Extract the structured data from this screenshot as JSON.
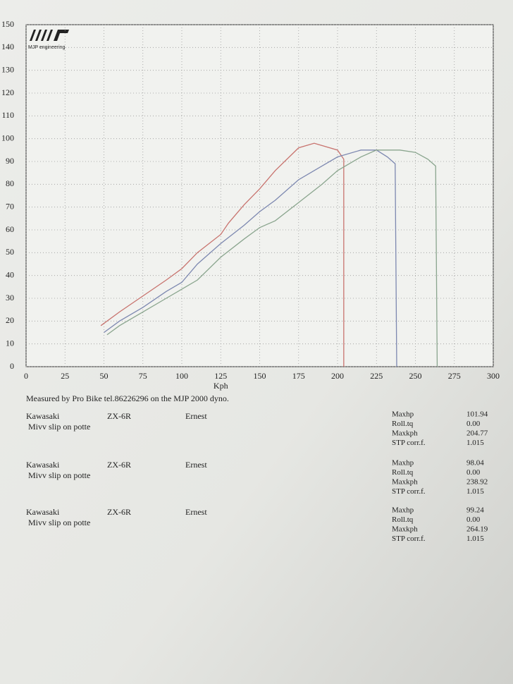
{
  "logo": "MJP engineering",
  "chart_data": {
    "type": "line",
    "x_label": "Kph",
    "xlim": [
      0,
      300
    ],
    "xticks": [
      0,
      25,
      50,
      75,
      100,
      125,
      150,
      175,
      200,
      225,
      250,
      275,
      300
    ],
    "ylim": [
      0,
      150
    ],
    "yticks": [
      0,
      10,
      20,
      30,
      40,
      50,
      60,
      70,
      80,
      90,
      100,
      110,
      120,
      130,
      140,
      150
    ],
    "grid": true,
    "series": [
      {
        "color": "#c8736e",
        "x": [
          48,
          60,
          75,
          90,
          100,
          110,
          125,
          130,
          140,
          150,
          160,
          175,
          185,
          190,
          200,
          204,
          204
        ],
        "values": [
          18,
          24,
          31,
          38,
          43,
          50,
          58,
          63,
          71,
          78,
          86,
          96,
          98,
          97,
          95,
          91,
          0
        ]
      },
      {
        "color": "#7d88b0",
        "x": [
          50,
          60,
          75,
          90,
          100,
          110,
          125,
          140,
          150,
          160,
          175,
          190,
          200,
          215,
          225,
          232,
          237,
          238
        ],
        "values": [
          15,
          20,
          26,
          33,
          37,
          45,
          54,
          62,
          68,
          73,
          82,
          88,
          92,
          95,
          95,
          92,
          89,
          0
        ]
      },
      {
        "color": "#8aa58e",
        "x": [
          52,
          60,
          75,
          90,
          100,
          110,
          125,
          140,
          150,
          160,
          175,
          190,
          200,
          215,
          225,
          240,
          250,
          258,
          263,
          264
        ],
        "values": [
          14,
          18,
          24,
          30,
          34,
          38,
          48,
          56,
          61,
          64,
          72,
          80,
          86,
          92,
          95,
          95,
          94,
          91,
          88,
          0
        ]
      }
    ]
  },
  "footer": "Measured by Pro Bike tel.86226296 on the MJP 2000 dyno.",
  "runs": [
    {
      "make": "Kawasaki",
      "model": "ZX-6R",
      "rider": "Ernest",
      "note": "Mivv slip on potte",
      "stats": [
        [
          "Maxhp",
          "101.94"
        ],
        [
          "Roll.tq",
          "0.00"
        ],
        [
          "Maxkph",
          "204.77"
        ],
        [
          "STP corr.f.",
          "1.015"
        ]
      ]
    },
    {
      "make": "Kawasaki",
      "model": "ZX-6R",
      "rider": "Ernest",
      "note": "Mivv slip on potte",
      "stats": [
        [
          "Maxhp",
          "98.04"
        ],
        [
          "Roll.tq",
          "0.00"
        ],
        [
          "Maxkph",
          "238.92"
        ],
        [
          "STP corr.f.",
          "1.015"
        ]
      ]
    },
    {
      "make": "Kawasaki",
      "model": "ZX-6R",
      "rider": "Ernest",
      "note": "Mivv slip on potte",
      "stats": [
        [
          "Maxhp",
          "99.24"
        ],
        [
          "Roll.tq",
          "0.00"
        ],
        [
          "Maxkph",
          "264.19"
        ],
        [
          "STP corr.f.",
          "1.015"
        ]
      ]
    }
  ]
}
